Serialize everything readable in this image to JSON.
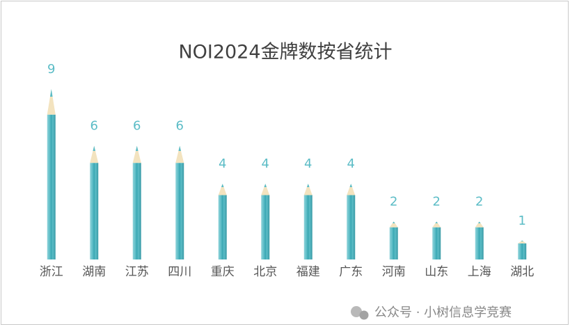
{
  "chart_data": {
    "type": "pencil-bar",
    "title": "NOI2024金牌数按省统计",
    "categories": [
      "浙江",
      "湖南",
      "江苏",
      "四川",
      "重庆",
      "北京",
      "福建",
      "广东",
      "河南",
      "山东",
      "上海",
      "湖北"
    ],
    "values": [
      9,
      6,
      6,
      6,
      4,
      4,
      4,
      4,
      2,
      2,
      2,
      1
    ],
    "color": "#5bbcc6",
    "ylim": [
      0,
      9
    ],
    "watermark": "公众号 · 小树信息学竞赛"
  }
}
